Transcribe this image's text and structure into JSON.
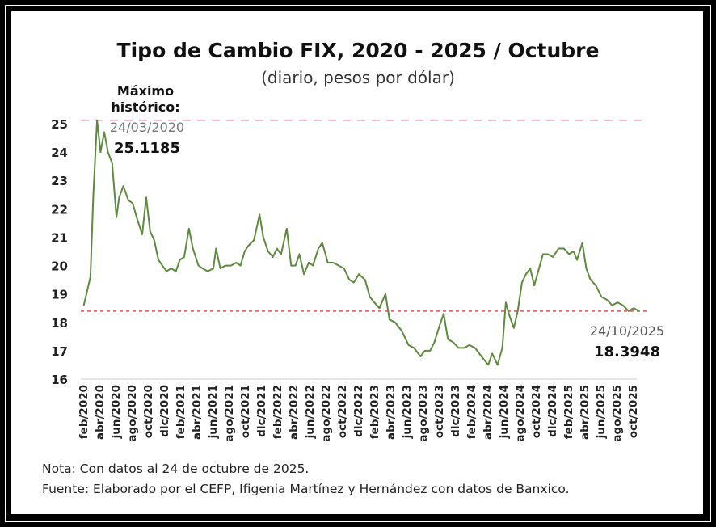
{
  "chart_data": {
    "type": "line",
    "title": "Tipo de Cambio FIX, 2020 - 2025 / Octubre",
    "subtitle": "(diario, pesos por dólar)",
    "xlabel": "",
    "ylabel": "",
    "ylim": [
      16,
      25
    ],
    "yticks": [
      16,
      17,
      18,
      19,
      20,
      21,
      22,
      23,
      24,
      25
    ],
    "xticks": [
      "feb/2020",
      "abr/2020",
      "jun/2020",
      "ago/2020",
      "oct/2020",
      "dic/2020",
      "feb/2021",
      "abr/2021",
      "jun/2021",
      "ago/2021",
      "oct/2021",
      "dic/2021",
      "feb/2022",
      "abr/2022",
      "jun/2022",
      "ago/2022",
      "oct/2022",
      "dic/2022",
      "feb/2023",
      "abr/2023",
      "jun/2023",
      "ago/2023",
      "oct/2023",
      "dic/2023",
      "feb/2024",
      "abr/2024",
      "jun/2024",
      "ago/2024",
      "oct/2024",
      "dic/2024",
      "feb/2025",
      "abr/2025",
      "jun/2025",
      "ago/2025",
      "oct/2025"
    ],
    "grid": false,
    "line_color": "#5e8a3e",
    "series": [
      {
        "x": [
          "2020-02-03",
          "2020-02-28",
          "2020-03-10",
          "2020-03-24",
          "2020-04-06",
          "2020-04-20",
          "2020-05-04",
          "2020-05-20",
          "2020-06-05",
          "2020-06-15",
          "2020-07-01",
          "2020-07-20",
          "2020-08-05",
          "2020-08-20",
          "2020-09-10",
          "2020-09-25",
          "2020-10-10",
          "2020-10-25",
          "2020-11-10",
          "2020-11-25",
          "2020-12-10",
          "2020-12-28",
          "2021-01-15",
          "2021-01-30",
          "2021-02-15",
          "2021-03-05",
          "2021-03-20",
          "2021-04-10",
          "2021-04-25",
          "2021-05-15",
          "2021-06-05",
          "2021-06-15",
          "2021-07-01",
          "2021-07-20",
          "2021-08-10",
          "2021-08-30",
          "2021-09-15",
          "2021-10-01",
          "2021-10-15",
          "2021-11-05",
          "2021-11-26",
          "2021-12-10",
          "2021-12-28",
          "2022-01-15",
          "2022-01-30",
          "2022-02-15",
          "2022-03-08",
          "2022-03-25",
          "2022-04-10",
          "2022-04-25",
          "2022-05-12",
          "2022-05-30",
          "2022-06-15",
          "2022-07-05",
          "2022-07-20",
          "2022-08-10",
          "2022-08-30",
          "2022-09-20",
          "2022-10-10",
          "2022-10-30",
          "2022-11-15",
          "2022-12-05",
          "2022-12-28",
          "2023-01-15",
          "2023-02-01",
          "2023-02-20",
          "2023-03-15",
          "2023-03-30",
          "2023-04-20",
          "2023-05-15",
          "2023-06-10",
          "2023-06-30",
          "2023-07-25",
          "2023-08-10",
          "2023-08-30",
          "2023-09-15",
          "2023-10-05",
          "2023-10-20",
          "2023-11-05",
          "2023-11-25",
          "2023-12-15",
          "2024-01-05",
          "2024-01-25",
          "2024-02-15",
          "2024-03-10",
          "2024-04-05",
          "2024-04-20",
          "2024-05-10",
          "2024-05-28",
          "2024-06-10",
          "2024-06-25",
          "2024-07-10",
          "2024-07-25",
          "2024-08-10",
          "2024-08-25",
          "2024-09-10",
          "2024-09-25",
          "2024-10-10",
          "2024-10-28",
          "2024-11-15",
          "2024-12-05",
          "2024-12-25",
          "2025-01-15",
          "2025-02-03",
          "2025-02-20",
          "2025-03-05",
          "2025-03-25",
          "2025-04-09",
          "2025-04-25",
          "2025-05-15",
          "2025-06-05",
          "2025-06-25",
          "2025-07-15",
          "2025-08-05",
          "2025-08-25",
          "2025-09-15",
          "2025-10-05",
          "2025-10-24"
        ],
        "y": [
          18.6,
          19.6,
          22.5,
          25.1185,
          24.0,
          24.7,
          24.0,
          23.6,
          21.7,
          22.4,
          22.8,
          22.3,
          22.2,
          21.7,
          21.1,
          22.4,
          21.2,
          20.9,
          20.2,
          20.0,
          19.8,
          19.9,
          19.8,
          20.2,
          20.3,
          21.3,
          20.6,
          20.0,
          19.9,
          19.8,
          19.9,
          20.6,
          19.9,
          20.0,
          20.0,
          20.1,
          20.0,
          20.5,
          20.7,
          20.9,
          21.8,
          21.0,
          20.5,
          20.3,
          20.6,
          20.4,
          21.3,
          20.0,
          20.0,
          20.4,
          19.7,
          20.1,
          20.0,
          20.6,
          20.8,
          20.1,
          20.1,
          20.0,
          19.9,
          19.5,
          19.4,
          19.7,
          19.5,
          18.9,
          18.7,
          18.5,
          19.0,
          18.1,
          18.0,
          17.7,
          17.2,
          17.1,
          16.8,
          17.0,
          17.0,
          17.3,
          17.9,
          18.3,
          17.4,
          17.3,
          17.1,
          17.1,
          17.2,
          17.1,
          16.8,
          16.5,
          16.9,
          16.5,
          17.1,
          18.7,
          18.2,
          17.8,
          18.4,
          19.4,
          19.7,
          19.9,
          19.3,
          19.8,
          20.4,
          20.4,
          20.3,
          20.6,
          20.6,
          20.4,
          20.5,
          20.2,
          20.8,
          19.9,
          19.5,
          19.3,
          18.9,
          18.8,
          18.6,
          18.7,
          18.6,
          18.4,
          18.5,
          18.3948
        ]
      }
    ],
    "reference_lines": [
      {
        "value": 25.1185,
        "style": "dashed",
        "color": "#f2b8c6"
      },
      {
        "value": 18.3948,
        "style": "dotted",
        "color": "#e05060"
      }
    ],
    "annotations": {
      "max_label": "Máximo histórico:",
      "max_label_line1": "Máximo",
      "max_label_line2": "histórico:",
      "max_date": "24/03/2020",
      "max_value": "25.1185",
      "last_date": "24/10/2025",
      "last_value": "18.3948"
    }
  },
  "notes": {
    "nota": "Nota: Con datos al 24 de octubre de 2025.",
    "fuente": "Fuente: Elaborado por el CEFP, Ifigenia Martínez y Hernández con datos de Banxico."
  }
}
